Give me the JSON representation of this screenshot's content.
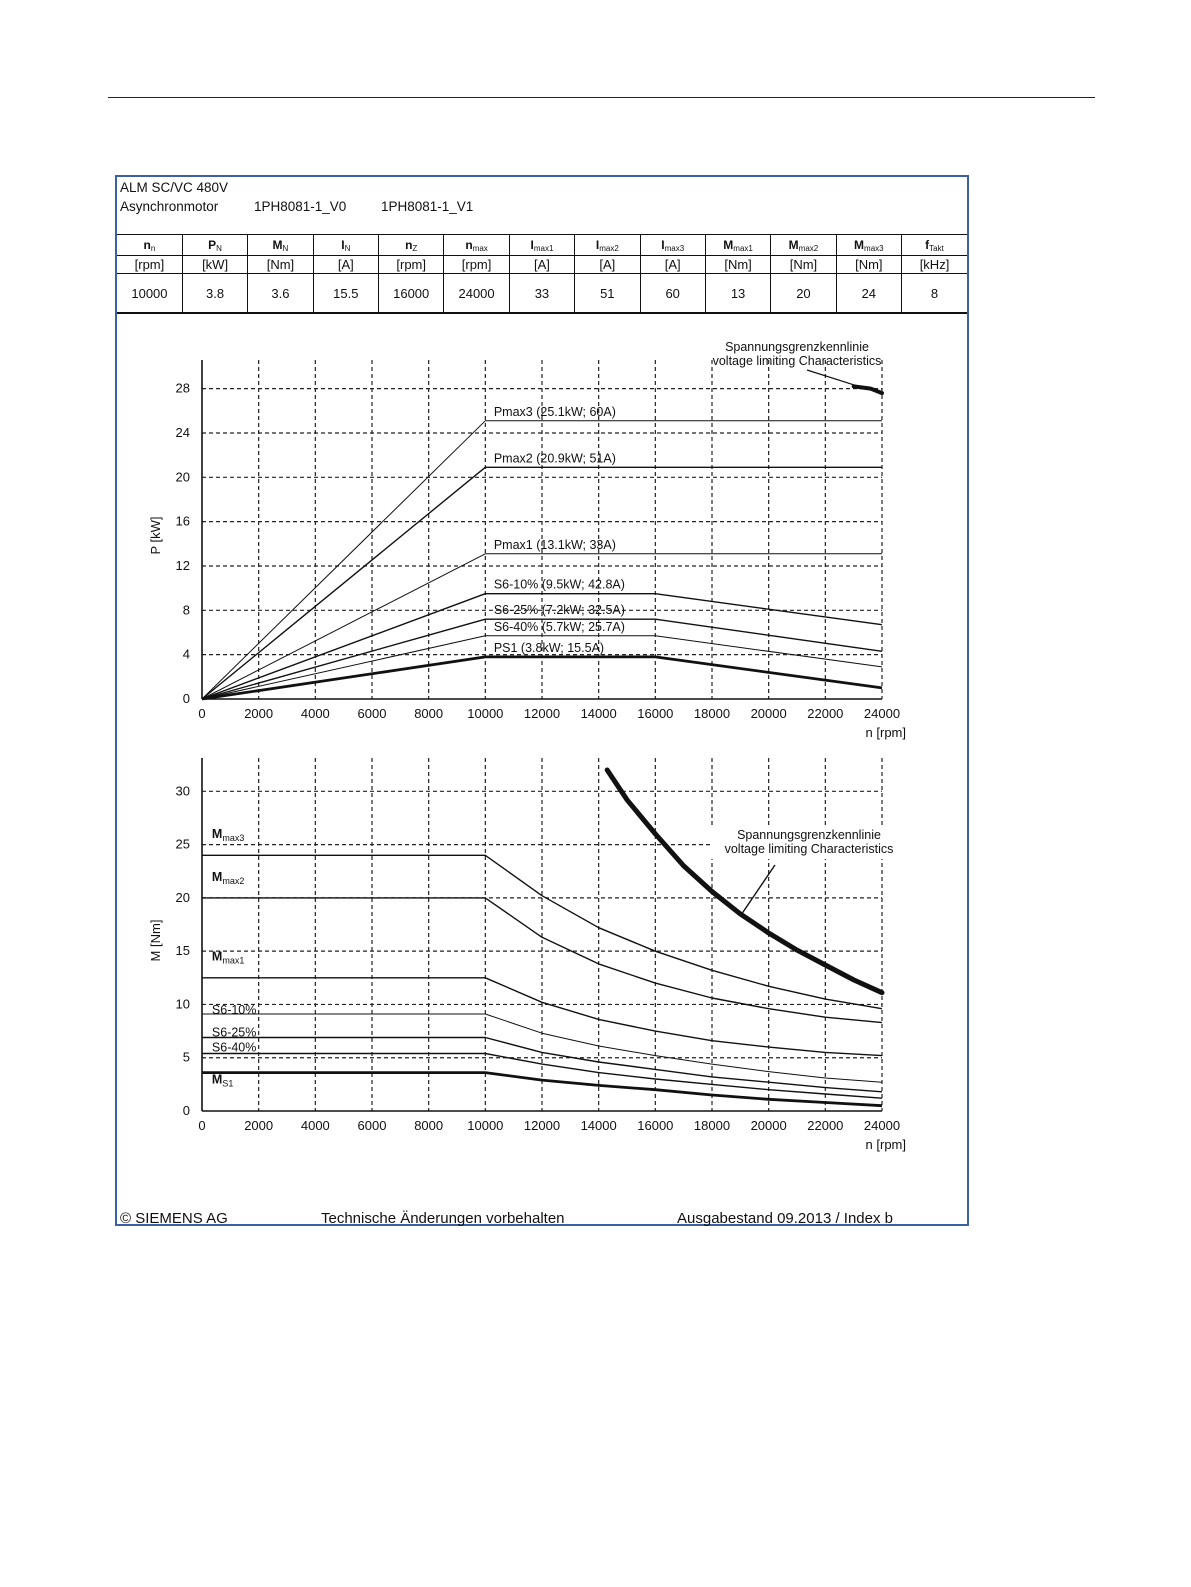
{
  "sheet": {
    "title": "ALM SC/VC 480V",
    "motor_label": "Asynchronmotor",
    "model_1": "1PH8081-1_V0",
    "model_2": "1PH8081-1_V1",
    "border_color": "#3b5fa8"
  },
  "spec_table": {
    "columns": [
      {
        "sym": "n",
        "sub": "n",
        "unit": "[rpm]",
        "value": "10000"
      },
      {
        "sym": "P",
        "sub": "N",
        "unit": "[kW]",
        "value": "3.8"
      },
      {
        "sym": "M",
        "sub": "N",
        "unit": "[Nm]",
        "value": "3.6"
      },
      {
        "sym": "I",
        "sub": "N",
        "unit": "[A]",
        "value": "15.5"
      },
      {
        "sym": "n",
        "sub": "Z",
        "unit": "[rpm]",
        "value": "16000"
      },
      {
        "sym": "n",
        "sub": "max",
        "unit": "[rpm]",
        "value": "24000"
      },
      {
        "sym": "I",
        "sub": "max1",
        "unit": "[A]",
        "value": "33"
      },
      {
        "sym": "I",
        "sub": "max2",
        "unit": "[A]",
        "value": "51"
      },
      {
        "sym": "I",
        "sub": "max3",
        "unit": "[A]",
        "value": "60"
      },
      {
        "sym": "M",
        "sub": "max1",
        "unit": "[Nm]",
        "value": "13"
      },
      {
        "sym": "M",
        "sub": "max2",
        "unit": "[Nm]",
        "value": "20"
      },
      {
        "sym": "M",
        "sub": "max3",
        "unit": "[Nm]",
        "value": "24"
      },
      {
        "sym": "f",
        "sub": "Takt",
        "unit": "[kHz]",
        "value": "8"
      }
    ]
  },
  "chart_data": [
    {
      "type": "line",
      "xlabel": "n [rpm]",
      "ylabel": "P [kW]",
      "xlim": [
        0,
        24000
      ],
      "ylim": [
        0,
        29.5
      ],
      "xticks": [
        0,
        2000,
        4000,
        6000,
        8000,
        10000,
        12000,
        14000,
        16000,
        18000,
        20000,
        22000,
        24000
      ],
      "yticks": [
        0,
        4,
        8,
        12,
        16,
        20,
        24,
        28
      ],
      "grid": "dashed",
      "series": [
        {
          "name": "Pmax3 (25.1kW; 60A)",
          "weight": "thin",
          "points": [
            [
              0,
              0
            ],
            [
              10000,
              25.1
            ],
            [
              24000,
              25.1
            ]
          ]
        },
        {
          "name": "Pmax2 (20.9kW; 51A)",
          "weight": "normal",
          "points": [
            [
              0,
              0
            ],
            [
              10000,
              20.9
            ],
            [
              24000,
              20.9
            ]
          ]
        },
        {
          "name": "Pmax1 (13.1kW; 33A)",
          "weight": "thin",
          "points": [
            [
              0,
              0
            ],
            [
              10000,
              13.1
            ],
            [
              24000,
              13.1
            ]
          ]
        },
        {
          "name": "S6-10% (9.5kW; 42.8A)",
          "weight": "normal",
          "points": [
            [
              0,
              0
            ],
            [
              10000,
              9.5
            ],
            [
              16000,
              9.5
            ],
            [
              24000,
              6.7
            ]
          ]
        },
        {
          "name": "S6-25% (7.2kW; 32.5A)",
          "weight": "normal",
          "points": [
            [
              0,
              0
            ],
            [
              10000,
              7.2
            ],
            [
              16000,
              7.2
            ],
            [
              24000,
              4.3
            ]
          ]
        },
        {
          "name": "S6-40% (5.7kW; 25.7A)",
          "weight": "thin",
          "points": [
            [
              0,
              0
            ],
            [
              10000,
              5.7
            ],
            [
              16000,
              5.7
            ],
            [
              24000,
              2.9
            ]
          ]
        },
        {
          "name": "PS1 (3.8kW; 15.5A)",
          "weight": "bold",
          "points": [
            [
              0,
              0
            ],
            [
              10000,
              3.8
            ],
            [
              16000,
              3.8
            ],
            [
              24000,
              1.0
            ]
          ]
        }
      ],
      "annotation": {
        "line1": "Spannungsgrenzkennlinie",
        "line2": "voltage limiting  Characteristics",
        "curve": [
          [
            23000,
            28.2
          ],
          [
            23600,
            28.0
          ],
          [
            24000,
            27.6
          ]
        ]
      }
    },
    {
      "type": "line",
      "xlabel": "n [rpm]",
      "ylabel": "M [Nm]",
      "xlim": [
        0,
        24000
      ],
      "ylim": [
        0,
        32
      ],
      "xticks": [
        0,
        2000,
        4000,
        6000,
        8000,
        10000,
        12000,
        14000,
        16000,
        18000,
        20000,
        22000,
        24000
      ],
      "yticks": [
        0,
        5,
        10,
        15,
        20,
        25,
        30
      ],
      "grid": "dashed",
      "series": [
        {
          "name": "Mmax3",
          "label_main": "M",
          "label_sub": "max3",
          "weight": "normal",
          "label_y": 25.6,
          "points": [
            [
              0,
              24
            ],
            [
              10000,
              24
            ],
            [
              12000,
              20.2
            ],
            [
              14000,
              17.2
            ],
            [
              16000,
              15.0
            ],
            [
              18000,
              13.2
            ],
            [
              20000,
              11.7
            ],
            [
              22000,
              10.5
            ],
            [
              24000,
              9.6
            ]
          ]
        },
        {
          "name": "Mmax2",
          "label_main": "M",
          "label_sub": "max2",
          "weight": "normal",
          "label_y": 21.6,
          "points": [
            [
              0,
              20
            ],
            [
              10000,
              20
            ],
            [
              12000,
              16.3
            ],
            [
              14000,
              13.8
            ],
            [
              16000,
              12.0
            ],
            [
              18000,
              10.6
            ],
            [
              20000,
              9.6
            ],
            [
              22000,
              8.8
            ],
            [
              24000,
              8.3
            ]
          ]
        },
        {
          "name": "Mmax1",
          "label_main": "M",
          "label_sub": "max1",
          "weight": "normal",
          "label_y": 14.1,
          "points": [
            [
              0,
              12.5
            ],
            [
              10000,
              12.5
            ],
            [
              12000,
              10.2
            ],
            [
              14000,
              8.6
            ],
            [
              16000,
              7.5
            ],
            [
              18000,
              6.6
            ],
            [
              20000,
              6.0
            ],
            [
              22000,
              5.5
            ],
            [
              24000,
              5.2
            ]
          ]
        },
        {
          "name": "S6-10%",
          "label_main": "S6-10%",
          "label_sub": "",
          "weight": "thin",
          "label_y": 9.1,
          "points": [
            [
              0,
              9.1
            ],
            [
              10000,
              9.1
            ],
            [
              12000,
              7.3
            ],
            [
              14000,
              6.1
            ],
            [
              16000,
              5.2
            ],
            [
              18000,
              4.4
            ],
            [
              20000,
              3.7
            ],
            [
              22000,
              3.1
            ],
            [
              24000,
              2.7
            ]
          ]
        },
        {
          "name": "S6-25%",
          "label_main": "S6-25%",
          "label_sub": "",
          "weight": "normal",
          "label_y": 7.0,
          "points": [
            [
              0,
              6.9
            ],
            [
              10000,
              6.9
            ],
            [
              12000,
              5.5
            ],
            [
              14000,
              4.6
            ],
            [
              16000,
              3.9
            ],
            [
              18000,
              3.2
            ],
            [
              20000,
              2.7
            ],
            [
              22000,
              2.2
            ],
            [
              24000,
              1.8
            ]
          ]
        },
        {
          "name": "S6-40%",
          "label_main": "S6-40%",
          "label_sub": "",
          "weight": "normal",
          "label_y": 5.6,
          "points": [
            [
              0,
              5.4
            ],
            [
              10000,
              5.4
            ],
            [
              12000,
              4.4
            ],
            [
              14000,
              3.6
            ],
            [
              16000,
              3.0
            ],
            [
              18000,
              2.5
            ],
            [
              20000,
              2.0
            ],
            [
              22000,
              1.6
            ],
            [
              24000,
              1.2
            ]
          ]
        },
        {
          "name": "MS1",
          "label_main": "M",
          "label_sub": "S1",
          "weight": "bold",
          "label_y": 2.6,
          "points": [
            [
              0,
              3.6
            ],
            [
              10000,
              3.6
            ],
            [
              12000,
              2.9
            ],
            [
              14000,
              2.4
            ],
            [
              16000,
              2.0
            ],
            [
              18000,
              1.5
            ],
            [
              20000,
              1.1
            ],
            [
              22000,
              0.8
            ],
            [
              24000,
              0.5
            ]
          ]
        }
      ],
      "annotation": {
        "line1": "Spannungsgrenzkennlinie",
        "line2": "voltage limiting  Characteristics",
        "curve": [
          [
            14300,
            32
          ],
          [
            15000,
            29.2
          ],
          [
            16000,
            26.0
          ],
          [
            17000,
            23.0
          ],
          [
            18000,
            20.6
          ],
          [
            19000,
            18.5
          ],
          [
            20000,
            16.7
          ],
          [
            21000,
            15.1
          ],
          [
            22000,
            13.7
          ],
          [
            23000,
            12.3
          ],
          [
            24000,
            11.1
          ]
        ]
      }
    }
  ],
  "footer": {
    "copyright": "© SIEMENS AG",
    "notice": "Technische Änderungen vorbehalten",
    "edition": "Ausgabestand 09.2013 / Index b"
  }
}
